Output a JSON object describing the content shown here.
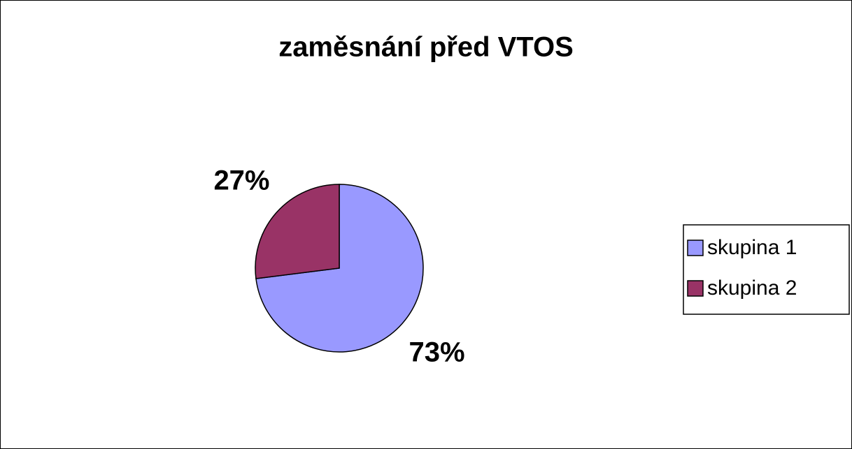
{
  "chart_data": {
    "type": "pie",
    "title": "zaměsnání před VTOS",
    "categories": [
      "skupina 1",
      "skupina 2"
    ],
    "values": [
      73,
      27
    ],
    "value_labels": [
      "73%",
      "27%"
    ],
    "colors": [
      "#9999ff",
      "#993366"
    ],
    "legend": "right"
  }
}
